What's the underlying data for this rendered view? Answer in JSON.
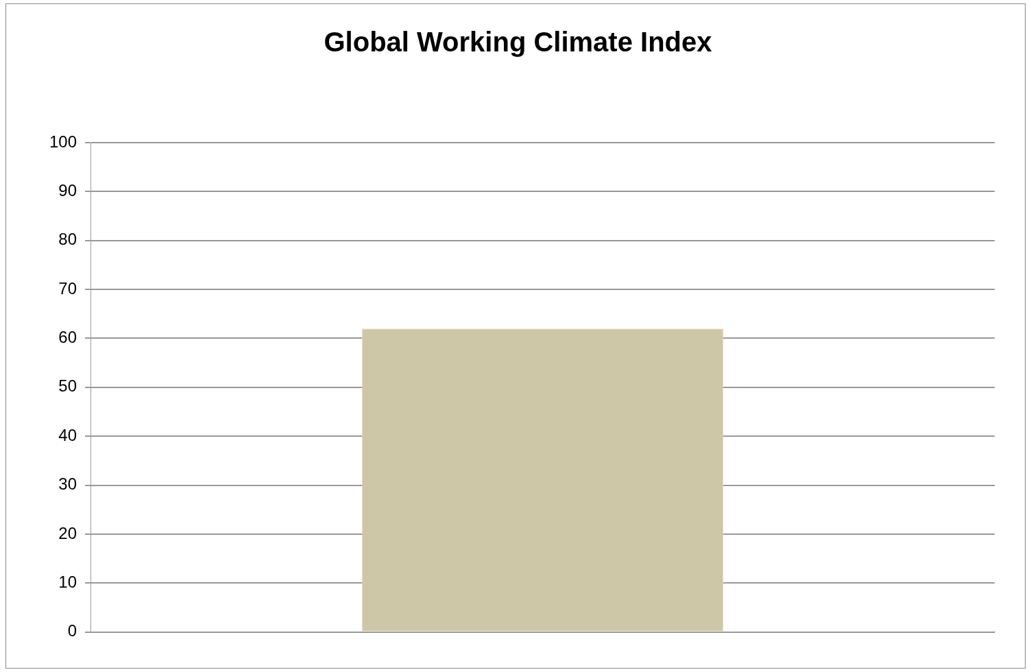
{
  "chart_data": {
    "type": "bar",
    "title": "Global Working Climate Index",
    "categories": [
      null
    ],
    "values": [
      62
    ],
    "color": "#cdc7a7",
    "ylim": [
      0,
      100
    ],
    "yticks": [
      0,
      10,
      20,
      30,
      40,
      50,
      60,
      70,
      80,
      90,
      100
    ],
    "grid": "y",
    "legend": false
  }
}
